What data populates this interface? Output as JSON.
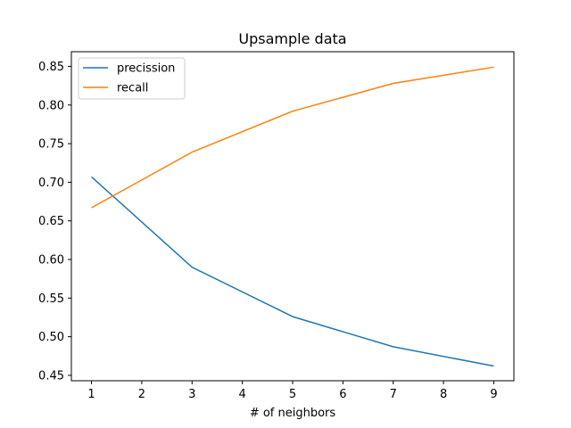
{
  "chart_data": {
    "type": "line",
    "title": "Upsample data",
    "xlabel": "# of neighbors",
    "ylabel": "",
    "x": [
      1,
      3,
      5,
      7,
      9
    ],
    "xticks": [
      1,
      2,
      3,
      4,
      5,
      6,
      7,
      8,
      9
    ],
    "xtick_labels": [
      "1",
      "2",
      "3",
      "4",
      "5",
      "6",
      "7",
      "8",
      "9"
    ],
    "yticks": [
      0.45,
      0.5,
      0.55,
      0.6,
      0.65,
      0.7,
      0.75,
      0.8,
      0.85
    ],
    "ytick_labels": [
      "0.45",
      "0.50",
      "0.55",
      "0.60",
      "0.65",
      "0.70",
      "0.75",
      "0.80",
      "0.85"
    ],
    "xlim": [
      0.6,
      9.4
    ],
    "ylim": [
      0.443,
      0.869
    ],
    "grid": false,
    "legend_position": "upper-left",
    "series": [
      {
        "name": "precission",
        "color": "#1f77b4",
        "values": [
          0.707,
          0.59,
          0.526,
          0.487,
          0.462
        ]
      },
      {
        "name": "recall",
        "color": "#ff7f0e",
        "values": [
          0.667,
          0.739,
          0.792,
          0.828,
          0.849
        ]
      }
    ]
  }
}
